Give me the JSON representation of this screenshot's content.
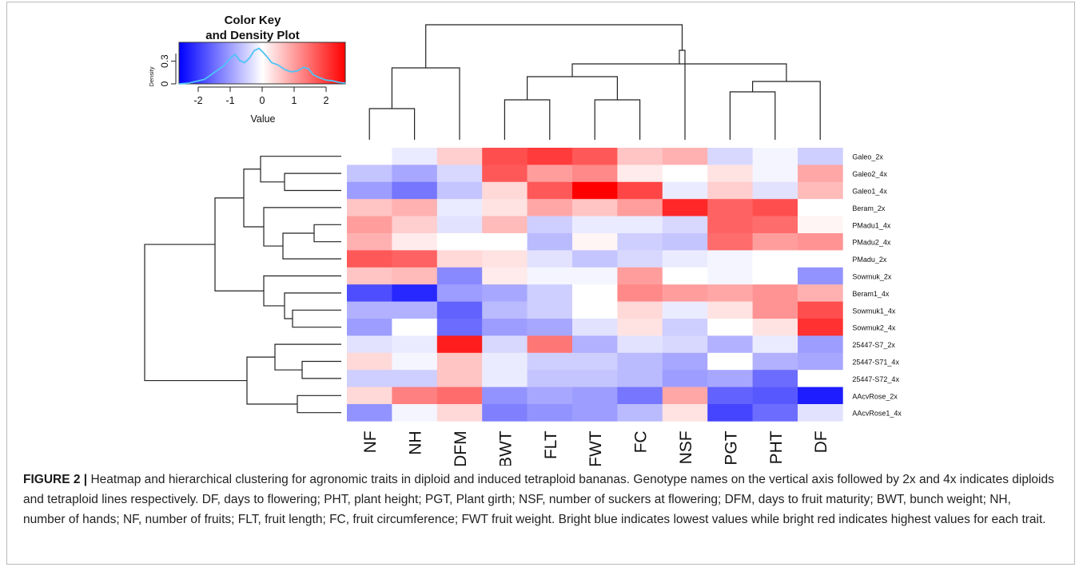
{
  "chart_data": {
    "type": "heatmap",
    "columns": [
      "NF",
      "NH",
      "DFM",
      "BWT",
      "FLT",
      "FWT",
      "FC",
      "NSF",
      "PGT",
      "PHT",
      "DF"
    ],
    "rows": [
      "Galeo_2x",
      "Galeo2_4x",
      "Galeo1_4x",
      "Beram_2x",
      "PMadu1_4x",
      "PMadu2_4x",
      "PMadu_2x",
      "Sowmuk_2x",
      "Beram1_4x",
      "Sowmuk1_4x",
      "Sowmuk2_4x",
      "25447-S7_2x",
      "25447-S71_4x",
      "25447-S72_4x",
      "AAcvRose_2x",
      "AAcvRose1_4x"
    ],
    "values": [
      [
        0.0,
        -0.2,
        0.5,
        1.8,
        2.0,
        1.7,
        0.6,
        0.8,
        -0.4,
        -0.1,
        -0.5
      ],
      [
        -0.6,
        -0.9,
        -0.4,
        1.7,
        1.0,
        1.2,
        0.2,
        0.0,
        0.3,
        -0.1,
        0.9
      ],
      [
        -1.0,
        -1.4,
        -0.6,
        0.4,
        1.7,
        2.6,
        1.9,
        -0.2,
        0.5,
        -0.3,
        0.7
      ],
      [
        0.6,
        0.8,
        -0.2,
        0.3,
        0.9,
        0.6,
        1.0,
        2.2,
        1.6,
        1.8,
        0.0
      ],
      [
        1.0,
        0.5,
        -0.3,
        0.7,
        -0.5,
        -0.2,
        -0.2,
        -0.4,
        1.6,
        1.5,
        0.1
      ],
      [
        0.8,
        0.2,
        0.0,
        0.0,
        -0.7,
        0.1,
        -0.5,
        -0.6,
        1.5,
        1.0,
        1.1
      ],
      [
        1.7,
        1.6,
        0.4,
        0.3,
        -0.3,
        -0.6,
        -0.4,
        -0.2,
        -0.1,
        0.0,
        0.0
      ],
      [
        0.6,
        0.7,
        -1.2,
        0.2,
        -0.1,
        -0.1,
        1.0,
        0.0,
        -0.1,
        0.0,
        -1.1
      ],
      [
        -1.8,
        -2.2,
        -1.0,
        -0.9,
        -0.5,
        0.0,
        1.2,
        1.0,
        0.9,
        1.1,
        0.8
      ],
      [
        -0.8,
        -0.8,
        -1.6,
        -0.7,
        -0.5,
        0.0,
        0.4,
        -0.2,
        0.3,
        1.1,
        1.8
      ],
      [
        -1.0,
        0.0,
        -1.5,
        -1.0,
        -0.9,
        -0.3,
        0.3,
        -0.5,
        0.0,
        0.3,
        2.1
      ],
      [
        -0.3,
        -0.2,
        2.3,
        -0.4,
        1.4,
        -0.8,
        -0.3,
        -0.4,
        -0.8,
        -0.2,
        -1.0
      ],
      [
        0.4,
        -0.1,
        0.6,
        -0.2,
        -0.5,
        -0.5,
        -0.7,
        -0.9,
        0.0,
        -0.8,
        -0.9
      ],
      [
        -0.5,
        -0.5,
        0.6,
        -0.2,
        -0.6,
        -0.6,
        -0.7,
        -1.0,
        -0.9,
        -1.5,
        0.0
      ],
      [
        0.4,
        1.3,
        1.5,
        -1.1,
        -0.9,
        -1.0,
        -1.4,
        0.9,
        -1.6,
        -1.7,
        -2.3
      ],
      [
        -1.1,
        -0.1,
        0.4,
        -1.3,
        -1.1,
        -1.0,
        -0.7,
        0.3,
        -1.9,
        -1.5,
        -0.3
      ]
    ],
    "color_scale": {
      "low": "#0000ff",
      "mid": "#ffffff",
      "high": "#ff0000",
      "range": [
        -2.6,
        2.6
      ]
    },
    "row_order_note": "",
    "key": {
      "title_line1": "Color Key",
      "title_line2": "and Density Plot",
      "xlabel": "Value",
      "ylabel": "Density",
      "x_ticks": [
        "-2",
        "-1",
        "0",
        "1",
        "2"
      ],
      "y_ticks": [
        "0",
        "0.3"
      ],
      "density_color": "#4fc3f7",
      "density_x": [
        -2.6,
        -2.3,
        -2.0,
        -1.8,
        -1.6,
        -1.4,
        -1.2,
        -1.0,
        -0.85,
        -0.7,
        -0.55,
        -0.4,
        -0.25,
        -0.1,
        0.0,
        0.15,
        0.3,
        0.5,
        0.7,
        0.9,
        1.1,
        1.3,
        1.45,
        1.6,
        1.8,
        2.0,
        2.2,
        2.4,
        2.6
      ],
      "density_y": [
        0.0,
        0.01,
        0.04,
        0.06,
        0.12,
        0.18,
        0.24,
        0.34,
        0.39,
        0.31,
        0.28,
        0.34,
        0.44,
        0.47,
        0.43,
        0.36,
        0.28,
        0.25,
        0.19,
        0.16,
        0.17,
        0.22,
        0.2,
        0.12,
        0.08,
        0.05,
        0.04,
        0.02,
        0.01
      ]
    }
  },
  "caption": {
    "label": "FIGURE 2 |",
    "text": " Heatmap and hierarchical clustering for agronomic traits in diploid and induced tetraploid bananas. Genotype names on the vertical axis followed by 2x and 4x indicates diploids and tetraploid lines respectively. DF, days to flowering; PHT, plant height; PGT, Plant girth; NSF, number of suckers at flowering; DFM, days to fruit maturity; BWT, bunch weight; NH, number of hands; NF, number of fruits; FLT, fruit length; FC, fruit circumference; FWT fruit weight. Bright blue indicates lowest values while bright red indicates highest values for each trait."
  }
}
